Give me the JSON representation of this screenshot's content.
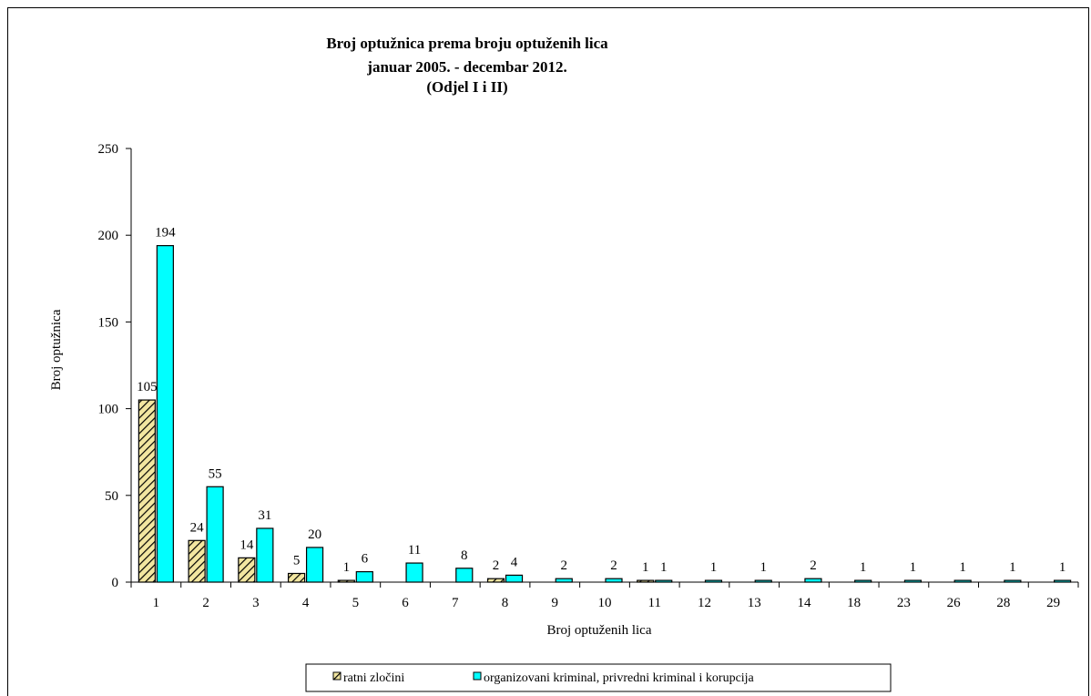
{
  "chart_data": {
    "type": "bar",
    "title": [
      "Broj optužnica prema broju optuženih lica",
      "januar 2005. - decembar 2012.",
      "(Odjel I i II)"
    ],
    "xlabel": "Broj optuženih lica",
    "ylabel": "Broj optužnica",
    "ylim": [
      0,
      250
    ],
    "yticks": [
      0,
      50,
      100,
      150,
      200,
      250
    ],
    "categories": [
      "1",
      "2",
      "3",
      "4",
      "5",
      "6",
      "7",
      "8",
      "9",
      "10",
      "11",
      "12",
      "13",
      "14",
      "18",
      "23",
      "26",
      "28",
      "29"
    ],
    "series": [
      {
        "name": "ratni zločini",
        "color": "#f2e6a0",
        "pattern": "diagonal-hatch",
        "values": [
          105,
          24,
          14,
          5,
          1,
          null,
          null,
          2,
          null,
          null,
          1,
          null,
          null,
          null,
          null,
          null,
          null,
          null,
          null
        ]
      },
      {
        "name": "organizovani kriminal, privredni kriminal i korupcija",
        "color": "#00ffff",
        "values": [
          194,
          55,
          31,
          20,
          6,
          11,
          8,
          4,
          2,
          2,
          1,
          1,
          1,
          2,
          1,
          1,
          1,
          1,
          1
        ]
      }
    ],
    "grid": false,
    "legend_position": "bottom"
  }
}
